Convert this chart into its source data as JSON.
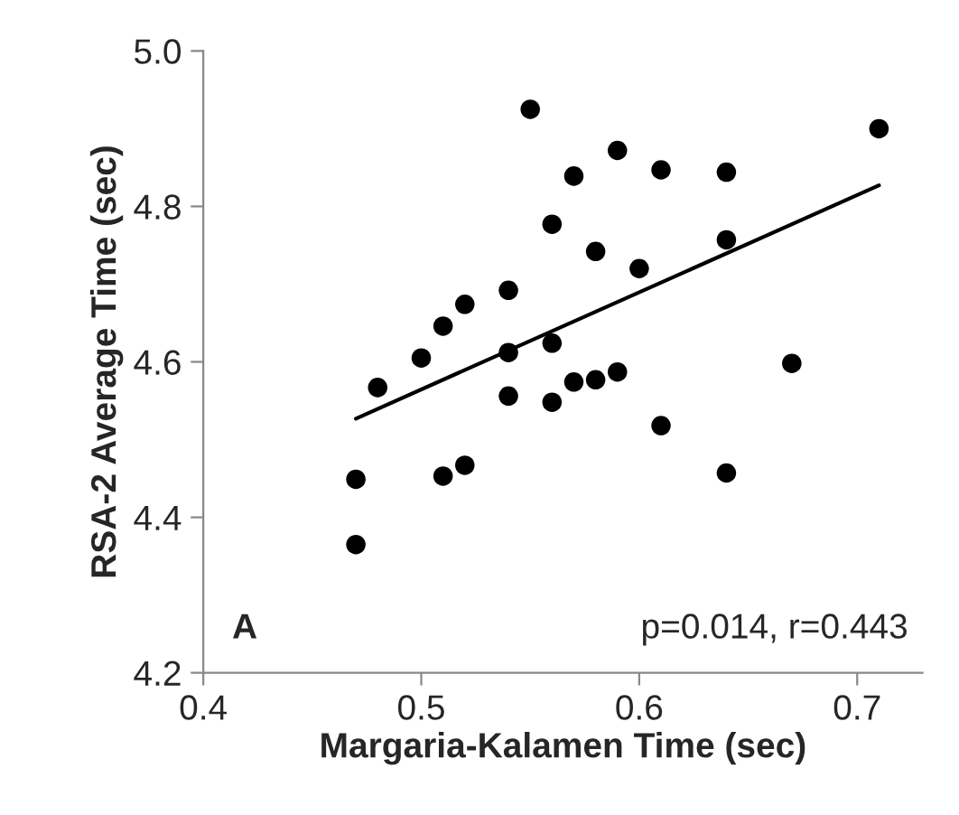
{
  "chart_data": {
    "type": "scatter",
    "xlabel": "Margaria-Kalamen Time (sec)",
    "ylabel": "RSA-2 Average Time (sec)",
    "xlim": [
      0.4,
      0.73
    ],
    "ylim": [
      4.2,
      5.0
    ],
    "xticks": [
      0.4,
      0.5,
      0.6,
      0.7
    ],
    "yticks": [
      {
        "value": 4.2,
        "label": "4.2"
      },
      {
        "value": 4.4,
        "label": "4.4"
      },
      {
        "value": 4.6,
        "label": "4.6"
      },
      {
        "value": 4.8,
        "label": "4.8"
      },
      {
        "value": 5.0,
        "label": "5.0"
      }
    ],
    "grid": false,
    "legend": false,
    "series": [
      {
        "marker": "circle",
        "color": "#000000",
        "x": [
          0.47,
          0.47,
          0.48,
          0.5,
          0.51,
          0.51,
          0.52,
          0.52,
          0.54,
          0.54,
          0.54,
          0.55,
          0.56,
          0.56,
          0.56,
          0.57,
          0.57,
          0.58,
          0.58,
          0.59,
          0.59,
          0.6,
          0.61,
          0.61,
          0.64,
          0.64,
          0.64,
          0.67,
          0.71
        ],
        "values": [
          4.365,
          4.449,
          4.567,
          4.605,
          4.646,
          4.453,
          4.674,
          4.467,
          4.692,
          4.612,
          4.556,
          4.925,
          4.777,
          4.624,
          4.548,
          4.839,
          4.574,
          4.742,
          4.577,
          4.872,
          4.587,
          4.72,
          4.847,
          4.518,
          4.844,
          4.757,
          4.457,
          4.598,
          4.9
        ]
      },
      {
        "type": "line",
        "marker": "none",
        "color": "#000000",
        "x": [
          0.47,
          0.71
        ],
        "values": [
          4.527,
          4.827
        ]
      }
    ],
    "annotations": [
      "A",
      "p=0.014, r=0.443"
    ]
  }
}
